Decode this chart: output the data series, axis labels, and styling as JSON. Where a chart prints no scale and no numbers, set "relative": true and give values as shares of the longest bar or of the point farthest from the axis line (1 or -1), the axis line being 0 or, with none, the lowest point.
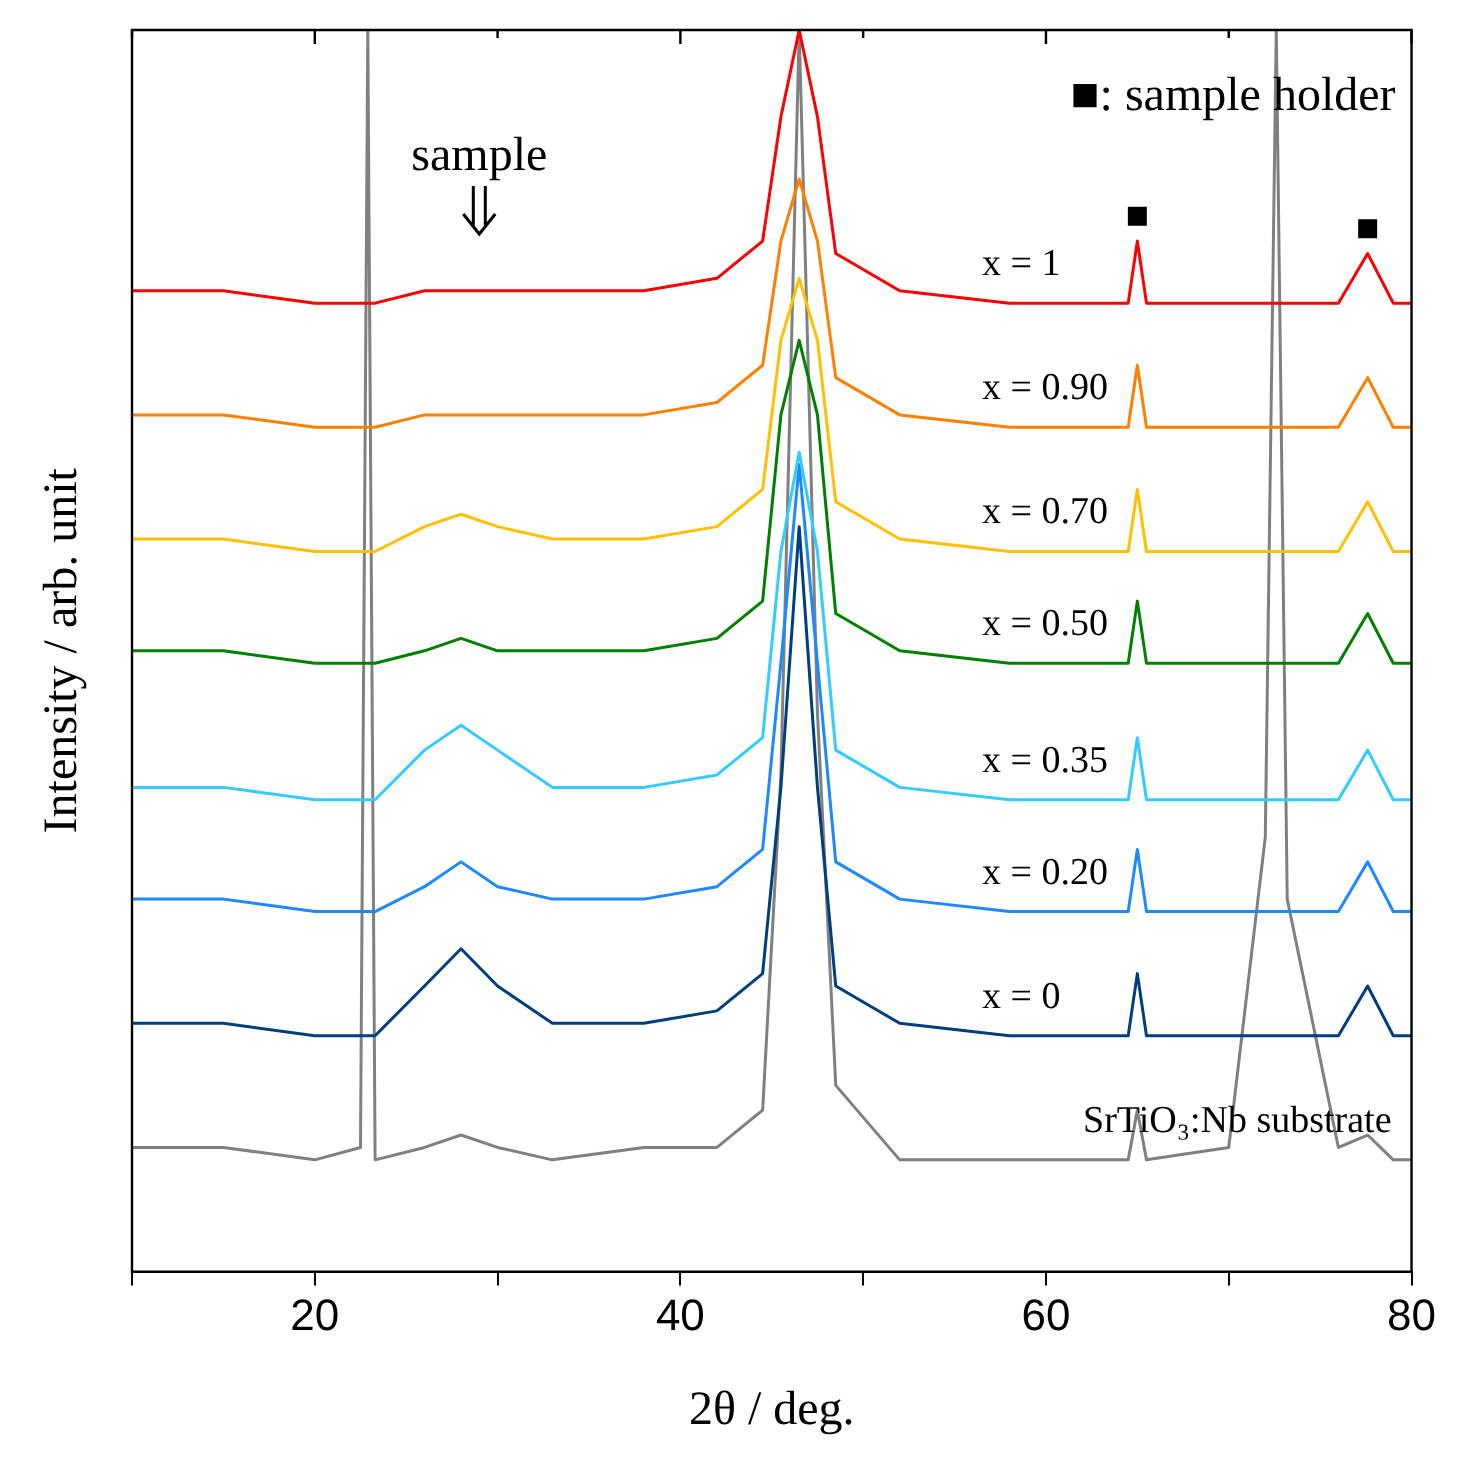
{
  "chart_data": {
    "type": "line",
    "relative": true,
    "xlabel": "2θ / deg.",
    "ylabel": "Intensity / arb. unit",
    "xlim": [
      10,
      80
    ],
    "xticks": [
      {
        "value": 10,
        "label": null
      },
      20,
      {
        "value": 30,
        "label": null
      },
      40,
      {
        "value": 50,
        "label": null
      },
      60,
      {
        "value": 70,
        "label": null
      },
      80
    ],
    "grid": false,
    "legend": false,
    "marker": "none",
    "line_style": "solid",
    "x": [
      10,
      15,
      20,
      22.5,
      22.9,
      23.3,
      26,
      28,
      30,
      33,
      38,
      42,
      44.5,
      45.5,
      46.5,
      47.5,
      48.5,
      52,
      58,
      64.5,
      65,
      65.5,
      70,
      72,
      72.6,
      73.2,
      76,
      77.6,
      79,
      80
    ],
    "series": [
      {
        "name": "SrTiO₃:Nb substrate",
        "color": "#808080",
        "values": [
          0.1,
          0.1,
          0.09,
          0.1,
          1,
          0.09,
          0.1,
          0.11,
          0.1,
          0.09,
          0.1,
          0.1,
          0.13,
          0.4,
          1,
          0.45,
          0.15,
          0.09,
          0.09,
          0.09,
          0.13,
          0.09,
          0.1,
          0.35,
          1,
          0.3,
          0.1,
          0.11,
          0.09,
          0.09
        ]
      },
      {
        "name": "x = 0",
        "color": "#003f7f",
        "values": [
          0.2,
          0.2,
          0.19,
          0.19,
          0.19,
          0.19,
          0.23,
          0.26,
          0.23,
          0.2,
          0.2,
          0.21,
          0.24,
          0.39,
          0.6,
          0.39,
          0.23,
          0.2,
          0.19,
          0.19,
          0.24,
          0.19,
          0.19,
          0.19,
          0.19,
          0.19,
          0.19,
          0.23,
          0.19,
          0.19
        ]
      },
      {
        "name": "x = 0.20",
        "color": "#1e88ff",
        "values": [
          0.3,
          0.3,
          0.29,
          0.29,
          0.29,
          0.29,
          0.31,
          0.33,
          0.31,
          0.3,
          0.3,
          0.31,
          0.34,
          0.49,
          0.65,
          0.49,
          0.33,
          0.3,
          0.29,
          0.29,
          0.34,
          0.29,
          0.29,
          0.29,
          0.29,
          0.29,
          0.29,
          0.33,
          0.29,
          0.29
        ]
      },
      {
        "name": "x = 0.35",
        "color": "#33ccff",
        "values": [
          0.39,
          0.39,
          0.38,
          0.38,
          0.38,
          0.38,
          0.42,
          0.44,
          0.42,
          0.39,
          0.39,
          0.4,
          0.43,
          0.58,
          0.66,
          0.58,
          0.42,
          0.39,
          0.38,
          0.38,
          0.43,
          0.38,
          0.38,
          0.38,
          0.38,
          0.38,
          0.38,
          0.42,
          0.38,
          0.38
        ]
      },
      {
        "name": "x = 0.50",
        "color": "#008000",
        "values": [
          0.5,
          0.5,
          0.49,
          0.49,
          0.49,
          0.49,
          0.5,
          0.51,
          0.5,
          0.5,
          0.5,
          0.51,
          0.54,
          0.69,
          0.75,
          0.69,
          0.53,
          0.5,
          0.49,
          0.49,
          0.54,
          0.49,
          0.49,
          0.49,
          0.49,
          0.49,
          0.49,
          0.53,
          0.49,
          0.49
        ]
      },
      {
        "name": "x = 0.70",
        "color": "#ffc000",
        "values": [
          0.59,
          0.59,
          0.58,
          0.58,
          0.58,
          0.58,
          0.6,
          0.61,
          0.6,
          0.59,
          0.59,
          0.6,
          0.63,
          0.75,
          0.8,
          0.75,
          0.62,
          0.59,
          0.58,
          0.58,
          0.63,
          0.58,
          0.58,
          0.58,
          0.58,
          0.58,
          0.58,
          0.62,
          0.58,
          0.58
        ]
      },
      {
        "name": "x = 0.90",
        "color": "#ff8000",
        "values": [
          0.69,
          0.69,
          0.68,
          0.68,
          0.68,
          0.68,
          0.69,
          0.69,
          0.69,
          0.69,
          0.69,
          0.7,
          0.73,
          0.83,
          0.88,
          0.83,
          0.72,
          0.69,
          0.68,
          0.68,
          0.73,
          0.68,
          0.68,
          0.68,
          0.68,
          0.68,
          0.68,
          0.72,
          0.68,
          0.68
        ]
      },
      {
        "name": "x = 1",
        "color": "#ff0000",
        "values": [
          0.79,
          0.79,
          0.78,
          0.78,
          0.78,
          0.78,
          0.79,
          0.79,
          0.79,
          0.79,
          0.79,
          0.8,
          0.83,
          0.93,
          1,
          0.93,
          0.82,
          0.79,
          0.78,
          0.78,
          0.83,
          0.78,
          0.78,
          0.78,
          0.78,
          0.78,
          0.78,
          0.82,
          0.78,
          0.78
        ]
      },
      {
        "type": "scatter",
        "marker": "square",
        "color": "#000000",
        "x": [
          65,
          77.6
        ],
        "values": [
          0.85,
          0.84
        ]
      }
    ],
    "annotations": [
      "sample",
      "■: sample holder"
    ]
  }
}
